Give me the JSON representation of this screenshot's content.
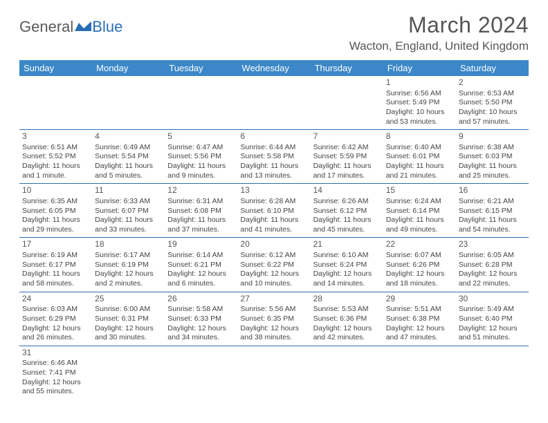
{
  "logo": {
    "text_a": "General",
    "text_b": "Blue"
  },
  "month_title": "March 2024",
  "location": "Wacton, England, United Kingdom",
  "colors": {
    "header_bg": "#3b87c8",
    "header_fg": "#ffffff",
    "rule": "#2a6fb5",
    "text": "#444444",
    "title": "#555555"
  },
  "weekdays": [
    "Sunday",
    "Monday",
    "Tuesday",
    "Wednesday",
    "Thursday",
    "Friday",
    "Saturday"
  ],
  "weeks": [
    [
      null,
      null,
      null,
      null,
      null,
      {
        "n": "1",
        "sr": "Sunrise: 6:56 AM",
        "ss": "Sunset: 5:49 PM",
        "dl": "Daylight: 10 hours and 53 minutes."
      },
      {
        "n": "2",
        "sr": "Sunrise: 6:53 AM",
        "ss": "Sunset: 5:50 PM",
        "dl": "Daylight: 10 hours and 57 minutes."
      }
    ],
    [
      {
        "n": "3",
        "sr": "Sunrise: 6:51 AM",
        "ss": "Sunset: 5:52 PM",
        "dl": "Daylight: 11 hours and 1 minute."
      },
      {
        "n": "4",
        "sr": "Sunrise: 6:49 AM",
        "ss": "Sunset: 5:54 PM",
        "dl": "Daylight: 11 hours and 5 minutes."
      },
      {
        "n": "5",
        "sr": "Sunrise: 6:47 AM",
        "ss": "Sunset: 5:56 PM",
        "dl": "Daylight: 11 hours and 9 minutes."
      },
      {
        "n": "6",
        "sr": "Sunrise: 6:44 AM",
        "ss": "Sunset: 5:58 PM",
        "dl": "Daylight: 11 hours and 13 minutes."
      },
      {
        "n": "7",
        "sr": "Sunrise: 6:42 AM",
        "ss": "Sunset: 5:59 PM",
        "dl": "Daylight: 11 hours and 17 minutes."
      },
      {
        "n": "8",
        "sr": "Sunrise: 6:40 AM",
        "ss": "Sunset: 6:01 PM",
        "dl": "Daylight: 11 hours and 21 minutes."
      },
      {
        "n": "9",
        "sr": "Sunrise: 6:38 AM",
        "ss": "Sunset: 6:03 PM",
        "dl": "Daylight: 11 hours and 25 minutes."
      }
    ],
    [
      {
        "n": "10",
        "sr": "Sunrise: 6:35 AM",
        "ss": "Sunset: 6:05 PM",
        "dl": "Daylight: 11 hours and 29 minutes."
      },
      {
        "n": "11",
        "sr": "Sunrise: 6:33 AM",
        "ss": "Sunset: 6:07 PM",
        "dl": "Daylight: 11 hours and 33 minutes."
      },
      {
        "n": "12",
        "sr": "Sunrise: 6:31 AM",
        "ss": "Sunset: 6:08 PM",
        "dl": "Daylight: 11 hours and 37 minutes."
      },
      {
        "n": "13",
        "sr": "Sunrise: 6:28 AM",
        "ss": "Sunset: 6:10 PM",
        "dl": "Daylight: 11 hours and 41 minutes."
      },
      {
        "n": "14",
        "sr": "Sunrise: 6:26 AM",
        "ss": "Sunset: 6:12 PM",
        "dl": "Daylight: 11 hours and 45 minutes."
      },
      {
        "n": "15",
        "sr": "Sunrise: 6:24 AM",
        "ss": "Sunset: 6:14 PM",
        "dl": "Daylight: 11 hours and 49 minutes."
      },
      {
        "n": "16",
        "sr": "Sunrise: 6:21 AM",
        "ss": "Sunset: 6:15 PM",
        "dl": "Daylight: 11 hours and 54 minutes."
      }
    ],
    [
      {
        "n": "17",
        "sr": "Sunrise: 6:19 AM",
        "ss": "Sunset: 6:17 PM",
        "dl": "Daylight: 11 hours and 58 minutes."
      },
      {
        "n": "18",
        "sr": "Sunrise: 6:17 AM",
        "ss": "Sunset: 6:19 PM",
        "dl": "Daylight: 12 hours and 2 minutes."
      },
      {
        "n": "19",
        "sr": "Sunrise: 6:14 AM",
        "ss": "Sunset: 6:21 PM",
        "dl": "Daylight: 12 hours and 6 minutes."
      },
      {
        "n": "20",
        "sr": "Sunrise: 6:12 AM",
        "ss": "Sunset: 6:22 PM",
        "dl": "Daylight: 12 hours and 10 minutes."
      },
      {
        "n": "21",
        "sr": "Sunrise: 6:10 AM",
        "ss": "Sunset: 6:24 PM",
        "dl": "Daylight: 12 hours and 14 minutes."
      },
      {
        "n": "22",
        "sr": "Sunrise: 6:07 AM",
        "ss": "Sunset: 6:26 PM",
        "dl": "Daylight: 12 hours and 18 minutes."
      },
      {
        "n": "23",
        "sr": "Sunrise: 6:05 AM",
        "ss": "Sunset: 6:28 PM",
        "dl": "Daylight: 12 hours and 22 minutes."
      }
    ],
    [
      {
        "n": "24",
        "sr": "Sunrise: 6:03 AM",
        "ss": "Sunset: 6:29 PM",
        "dl": "Daylight: 12 hours and 26 minutes."
      },
      {
        "n": "25",
        "sr": "Sunrise: 6:00 AM",
        "ss": "Sunset: 6:31 PM",
        "dl": "Daylight: 12 hours and 30 minutes."
      },
      {
        "n": "26",
        "sr": "Sunrise: 5:58 AM",
        "ss": "Sunset: 6:33 PM",
        "dl": "Daylight: 12 hours and 34 minutes."
      },
      {
        "n": "27",
        "sr": "Sunrise: 5:56 AM",
        "ss": "Sunset: 6:35 PM",
        "dl": "Daylight: 12 hours and 38 minutes."
      },
      {
        "n": "28",
        "sr": "Sunrise: 5:53 AM",
        "ss": "Sunset: 6:36 PM",
        "dl": "Daylight: 12 hours and 42 minutes."
      },
      {
        "n": "29",
        "sr": "Sunrise: 5:51 AM",
        "ss": "Sunset: 6:38 PM",
        "dl": "Daylight: 12 hours and 47 minutes."
      },
      {
        "n": "30",
        "sr": "Sunrise: 5:49 AM",
        "ss": "Sunset: 6:40 PM",
        "dl": "Daylight: 12 hours and 51 minutes."
      }
    ],
    [
      {
        "n": "31",
        "sr": "Sunrise: 6:46 AM",
        "ss": "Sunset: 7:41 PM",
        "dl": "Daylight: 12 hours and 55 minutes."
      },
      null,
      null,
      null,
      null,
      null,
      null
    ]
  ]
}
